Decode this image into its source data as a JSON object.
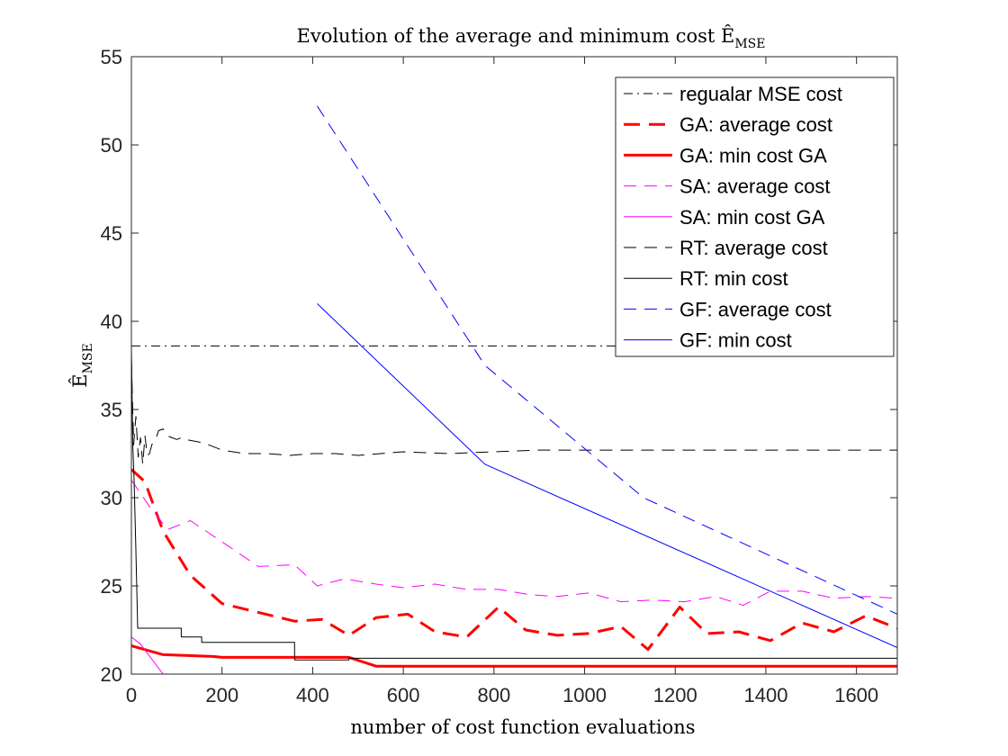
{
  "chart_data": {
    "type": "line",
    "title": {
      "main": "Evolution of the average and minimum cost Ê",
      "sub": "MSE"
    },
    "xlabel": "number of cost function evaluations",
    "ylabel": {
      "main": "Ê",
      "sub": "MSE"
    },
    "xlim": [
      0,
      1690
    ],
    "ylim": [
      20,
      55
    ],
    "xticks": [
      0,
      200,
      400,
      600,
      800,
      1000,
      1200,
      1400,
      1600
    ],
    "yticks": [
      20,
      25,
      30,
      35,
      40,
      45,
      50,
      55
    ],
    "grid": false,
    "legend_position": "top-right",
    "series": [
      {
        "name": "regualar MSE cost",
        "color": "#000000",
        "dash": "dashdot",
        "width": 1,
        "points": [
          [
            0,
            38.6
          ],
          [
            1690,
            38.6
          ]
        ]
      },
      {
        "name": "GA: average cost",
        "color": "#ff0000",
        "dash": "dashed",
        "width": 3,
        "points": [
          [
            0,
            31.6
          ],
          [
            30,
            30.9
          ],
          [
            70,
            28.1
          ],
          [
            130,
            25.6
          ],
          [
            200,
            24.0
          ],
          [
            280,
            23.5
          ],
          [
            360,
            23.0
          ],
          [
            420,
            23.1
          ],
          [
            480,
            22.2
          ],
          [
            540,
            23.2
          ],
          [
            610,
            23.4
          ],
          [
            670,
            22.4
          ],
          [
            740,
            22.1
          ],
          [
            810,
            23.8
          ],
          [
            870,
            22.5
          ],
          [
            940,
            22.2
          ],
          [
            1010,
            22.3
          ],
          [
            1080,
            22.7
          ],
          [
            1140,
            21.4
          ],
          [
            1210,
            23.8
          ],
          [
            1270,
            22.3
          ],
          [
            1340,
            22.4
          ],
          [
            1410,
            21.9
          ],
          [
            1480,
            22.9
          ],
          [
            1550,
            22.4
          ],
          [
            1620,
            23.3
          ],
          [
            1690,
            22.6
          ]
        ]
      },
      {
        "name": "GA: min cost GA",
        "color": "#ff0000",
        "dash": "solid",
        "width": 3,
        "points": [
          [
            0,
            21.6
          ],
          [
            70,
            21.1
          ],
          [
            180,
            21.0
          ],
          [
            200,
            20.95
          ],
          [
            480,
            20.95
          ],
          [
            540,
            20.45
          ],
          [
            1690,
            20.45
          ]
        ]
      },
      {
        "name": "SA: average cost",
        "color": "#ff00ff",
        "dash": "dashed",
        "width": 1,
        "points": [
          [
            0,
            31.0
          ],
          [
            40,
            29.5
          ],
          [
            80,
            28.2
          ],
          [
            130,
            28.7
          ],
          [
            200,
            27.5
          ],
          [
            280,
            26.1
          ],
          [
            360,
            26.2
          ],
          [
            410,
            25.0
          ],
          [
            470,
            25.4
          ],
          [
            540,
            25.1
          ],
          [
            600,
            24.9
          ],
          [
            670,
            25.1
          ],
          [
            740,
            24.8
          ],
          [
            810,
            24.8
          ],
          [
            880,
            24.5
          ],
          [
            940,
            24.4
          ],
          [
            1010,
            24.6
          ],
          [
            1080,
            24.1
          ],
          [
            1150,
            24.2
          ],
          [
            1220,
            24.1
          ],
          [
            1290,
            24.4
          ],
          [
            1350,
            23.9
          ],
          [
            1410,
            24.7
          ],
          [
            1480,
            24.7
          ],
          [
            1550,
            24.3
          ],
          [
            1620,
            24.4
          ],
          [
            1690,
            24.3
          ]
        ]
      },
      {
        "name": "SA: min cost GA",
        "color": "#ff00ff",
        "dash": "solid",
        "width": 1,
        "points": [
          [
            0,
            22.1
          ],
          [
            20,
            21.7
          ],
          [
            70,
            20.0
          ],
          [
            1690,
            20.0
          ]
        ]
      },
      {
        "name": "RT: average cost",
        "color": "#000000",
        "dash": "dashed",
        "width": 1,
        "points": [
          [
            0,
            37.8
          ],
          [
            5,
            33.0
          ],
          [
            10,
            34.6
          ],
          [
            15,
            32.3
          ],
          [
            20,
            33.4
          ],
          [
            25,
            31.9
          ],
          [
            30,
            33.5
          ],
          [
            35,
            32.4
          ],
          [
            40,
            32.5
          ],
          [
            45,
            33.0
          ],
          [
            50,
            33.2
          ],
          [
            55,
            33.4
          ],
          [
            60,
            33.8
          ],
          [
            70,
            33.9
          ],
          [
            80,
            33.5
          ],
          [
            90,
            33.4
          ],
          [
            100,
            33.3
          ],
          [
            110,
            33.4
          ],
          [
            120,
            33.3
          ],
          [
            140,
            33.2
          ],
          [
            160,
            33.1
          ],
          [
            200,
            32.7
          ],
          [
            250,
            32.5
          ],
          [
            300,
            32.5
          ],
          [
            350,
            32.4
          ],
          [
            400,
            32.5
          ],
          [
            450,
            32.5
          ],
          [
            500,
            32.4
          ],
          [
            600,
            32.6
          ],
          [
            700,
            32.5
          ],
          [
            800,
            32.6
          ],
          [
            900,
            32.7
          ],
          [
            1000,
            32.7
          ],
          [
            1100,
            32.7
          ],
          [
            1200,
            32.7
          ],
          [
            1300,
            32.7
          ],
          [
            1400,
            32.7
          ],
          [
            1500,
            32.7
          ],
          [
            1600,
            32.7
          ],
          [
            1690,
            32.7
          ]
        ]
      },
      {
        "name": "RT: min cost",
        "color": "#000000",
        "dash": "solid",
        "width": 1,
        "points": [
          [
            0,
            38.6
          ],
          [
            3,
            33.0
          ],
          [
            6,
            31.0
          ],
          [
            10,
            27.0
          ],
          [
            14,
            22.6
          ],
          [
            110,
            22.6
          ],
          [
            110,
            22.1
          ],
          [
            155,
            22.1
          ],
          [
            155,
            21.8
          ],
          [
            360,
            21.8
          ],
          [
            360,
            20.8
          ],
          [
            480,
            20.8
          ],
          [
            480,
            20.9
          ],
          [
            1690,
            20.9
          ]
        ]
      },
      {
        "name": "GF: average cost",
        "color": "#0000ff",
        "dash": "dashed",
        "width": 1,
        "points": [
          [
            410,
            52.2
          ],
          [
            780,
            37.5
          ],
          [
            1130,
            30.0
          ],
          [
            1690,
            23.4
          ]
        ]
      },
      {
        "name": "GF: min cost",
        "color": "#0000ff",
        "dash": "solid",
        "width": 1,
        "points": [
          [
            410,
            41.0
          ],
          [
            780,
            31.9
          ],
          [
            1690,
            21.5
          ]
        ]
      }
    ]
  }
}
